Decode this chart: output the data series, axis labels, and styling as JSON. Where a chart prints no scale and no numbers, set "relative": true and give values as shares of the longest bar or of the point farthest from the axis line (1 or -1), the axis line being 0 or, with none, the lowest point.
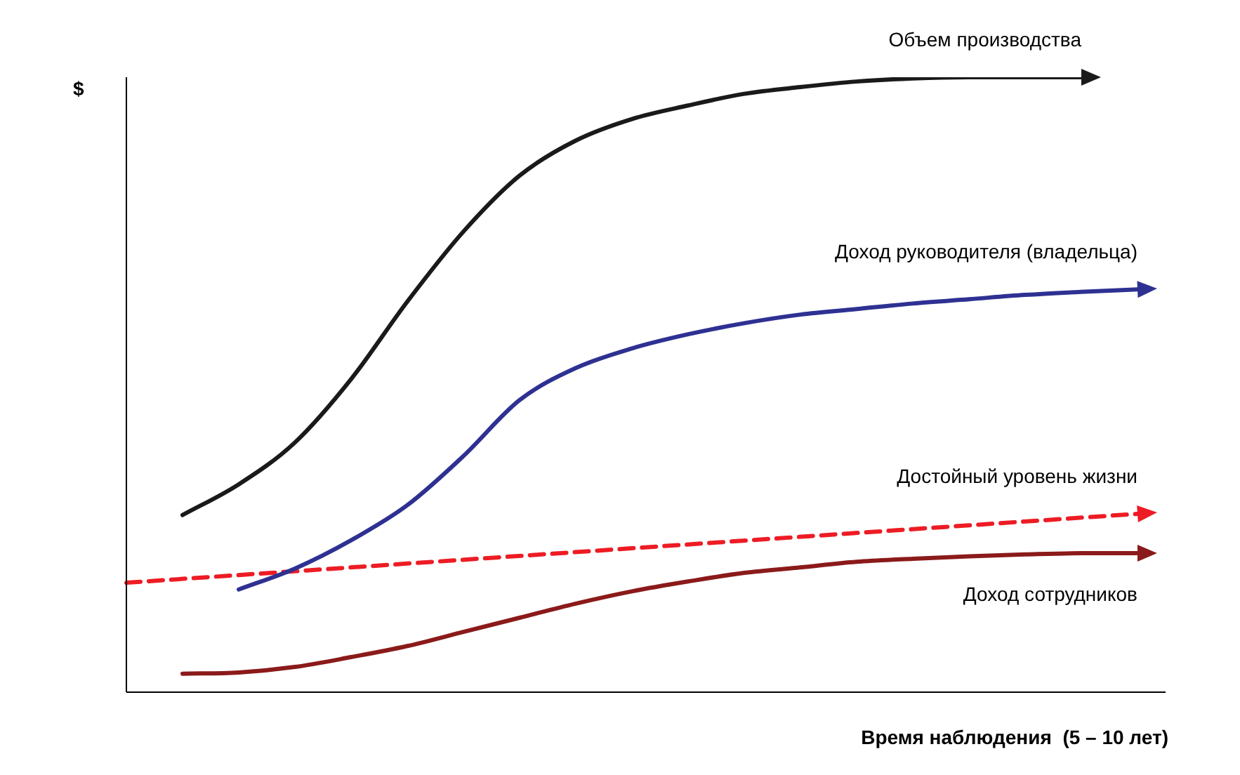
{
  "chart_data": {
    "type": "line",
    "relative": true,
    "xlabel": "Время наблюдения  (5 – 10 лет)",
    "ylabel": "$",
    "legend": false,
    "grid": false,
    "categories": [
      null,
      null,
      null,
      null,
      null,
      null,
      null,
      null,
      null,
      null,
      null,
      null,
      null,
      null,
      null,
      null,
      null,
      null,
      null
    ],
    "series": [
      {
        "name": "Объем производства",
        "color": "#1a1a1a",
        "line_style": "solid",
        "values": [
          null,
          0.288,
          0.338,
          0.406,
          0.509,
          0.635,
          0.749,
          0.84,
          0.897,
          0.932,
          0.954,
          0.973,
          0.984,
          0.993,
          0.998,
          1,
          1,
          1,
          null
        ]
      },
      {
        "name": "Доход руководителя (владельца)",
        "color": "#2e3192",
        "line_style": "solid",
        "values": [
          null,
          null,
          0.167,
          0.201,
          0.247,
          0.304,
          0.384,
          0.475,
          0.527,
          0.559,
          0.582,
          0.6,
          0.614,
          0.623,
          0.632,
          0.639,
          0.646,
          0.651,
          0.655
        ]
      },
      {
        "name": "Достойный уровень жизни",
        "color": "#ed1c24",
        "line_style": "dashed",
        "values": [
          0.178,
          null,
          null,
          null,
          null,
          null,
          null,
          null,
          null,
          null,
          null,
          null,
          null,
          null,
          null,
          null,
          null,
          null,
          0.29
        ]
      },
      {
        "name": "Доход сотрудников",
        "color": "#8b1a1a",
        "line_style": "solid",
        "values": [
          null,
          0.03,
          0.032,
          0.041,
          0.057,
          0.075,
          0.098,
          0.121,
          0.144,
          0.164,
          0.18,
          0.194,
          0.203,
          0.212,
          0.217,
          0.221,
          0.224,
          0.226,
          0.226
        ]
      }
    ]
  }
}
